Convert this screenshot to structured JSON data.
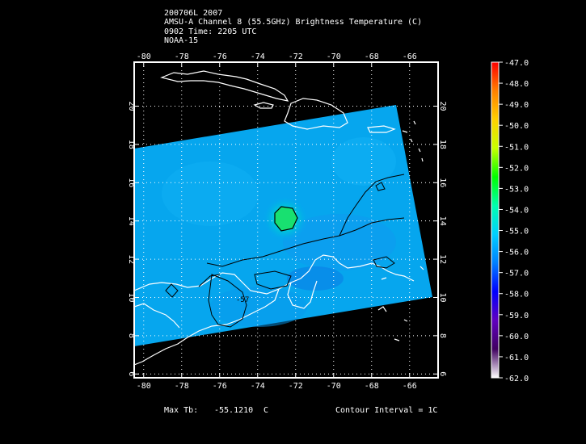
{
  "title_lines": [
    "200706L 2007",
    "AMSU-A Channel 8 (55.5GHz) Brightness Temperature (C)",
    "0902 Time: 2205 UTC",
    "NOAA-15"
  ],
  "map": {
    "x_ticks": [
      "-80",
      "-78",
      "-76",
      "-74",
      "-72",
      "-70",
      "-68",
      "-66"
    ],
    "y_ticks": [
      "6",
      "8",
      "10",
      "12",
      "14",
      "16",
      "18",
      "20"
    ],
    "contour_label": "-57"
  },
  "colorbar": {
    "labels": [
      "-47.0",
      "-48.0",
      "-49.0",
      "-50.0",
      "-51.0",
      "-52.0",
      "-53.0",
      "-54.0",
      "-55.0",
      "-56.0",
      "-57.0",
      "-58.0",
      "-59.0",
      "-60.0",
      "-61.0",
      "-62.0"
    ],
    "stops": [
      "#ff0000",
      "#ff8000",
      "#ffd000",
      "#c8ff00",
      "#00ff00",
      "#00ffb0",
      "#00d0ff",
      "#0080ff",
      "#0000ff",
      "#6000c0",
      "#400060",
      "#ffffff"
    ]
  },
  "footer": {
    "max_tb_label": "Max Tb:",
    "max_tb_value": "-55.1210",
    "max_tb_unit": "C",
    "contour_interval": "Contour Interval = 1C"
  }
}
